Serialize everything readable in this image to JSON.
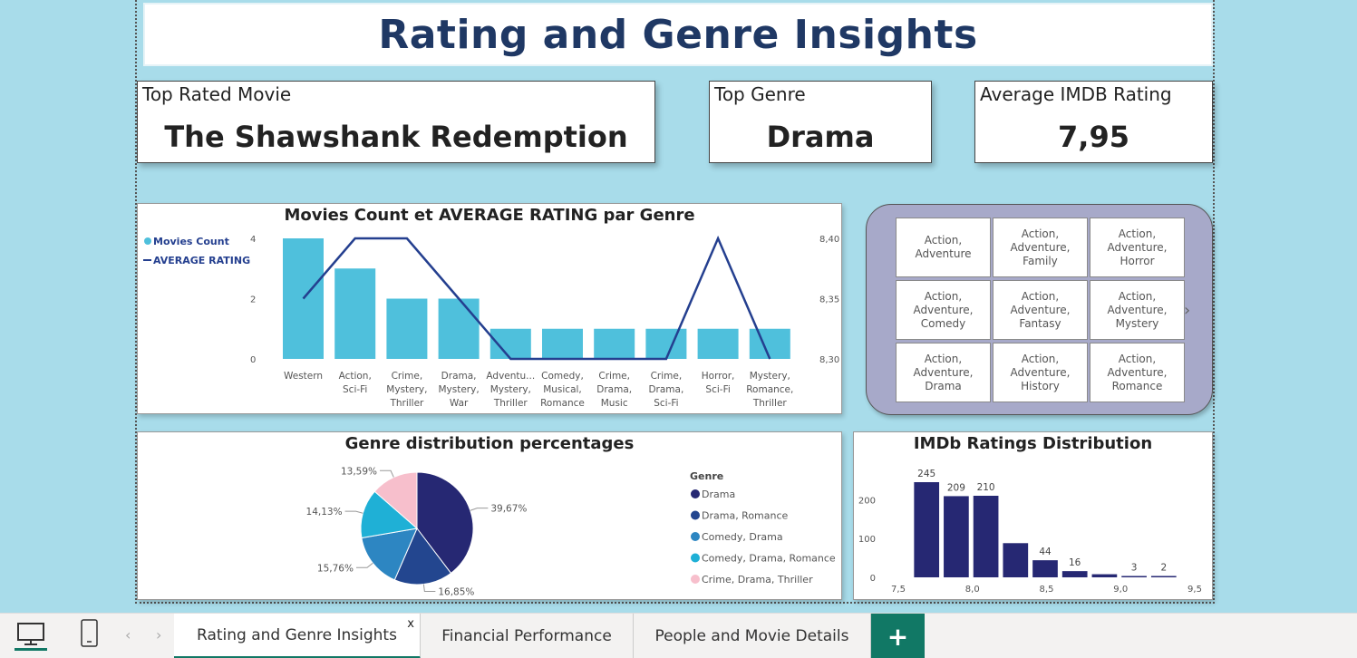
{
  "title": "Rating and Genre Insights",
  "kpis": {
    "top_movie": {
      "label": "Top Rated Movie",
      "value": "The Shawshank Redemption"
    },
    "top_genre": {
      "label": "Top Genre",
      "value": "Drama"
    },
    "avg_rating": {
      "label": "Average IMDB Rating",
      "value": "7,95"
    }
  },
  "slicer": {
    "tiles": [
      [
        "Action,",
        "Adventure"
      ],
      [
        "Action,",
        "Adventure,",
        "Family"
      ],
      [
        "Action,",
        "Adventure,",
        "Horror"
      ],
      [
        "Action,",
        "Adventure,",
        "Comedy"
      ],
      [
        "Action,",
        "Adventure,",
        "Fantasy"
      ],
      [
        "Action,",
        "Adventure,",
        "Mystery"
      ],
      [
        "Action,",
        "Adventure,",
        "Drama"
      ],
      [
        "Action,",
        "Adventure,",
        "History"
      ],
      [
        "Action,",
        "Adventure,",
        "Romance"
      ]
    ],
    "next_icon": "chevron-right-icon"
  },
  "chart_data": [
    {
      "type": "bar",
      "title": "Movies Count et AVERAGE RATING par Genre",
      "categories": [
        [
          "Western"
        ],
        [
          "Action,",
          "Sci-Fi"
        ],
        [
          "Crime,",
          "Mystery,",
          "Thriller"
        ],
        [
          "Drama,",
          "Mystery,",
          "War"
        ],
        [
          "Adventu...",
          "Mystery,",
          "Thriller"
        ],
        [
          "Comedy,",
          "Musical,",
          "Romance"
        ],
        [
          "Crime,",
          "Drama,",
          "Music"
        ],
        [
          "Crime,",
          "Drama,",
          "Sci-Fi"
        ],
        [
          "Horror,",
          "Sci-Fi"
        ],
        [
          "Mystery,",
          "Romance,",
          "Thriller"
        ]
      ],
      "series": [
        {
          "name": "Movies Count",
          "kind": "bar",
          "color": "#4fc0dc",
          "values": [
            4,
            3,
            2,
            2,
            1,
            1,
            1,
            1,
            1,
            1
          ]
        },
        {
          "name": "AVERAGE RATING",
          "kind": "line",
          "color": "#243f8f",
          "values": [
            8.35,
            8.4,
            8.4,
            8.35,
            8.3,
            8.3,
            8.3,
            8.3,
            8.4,
            8.3
          ]
        }
      ],
      "y_left_ticks": [
        "0",
        "2",
        "4"
      ],
      "y_left_range": [
        0,
        4
      ],
      "y_right_ticks": [
        "8,30",
        "8,35",
        "8,40"
      ],
      "y_right_range": [
        8.3,
        8.4
      ],
      "legend": "top-left"
    },
    {
      "type": "pie",
      "title": "Genre distribution percentages",
      "legend_title": "Genre",
      "slices": [
        {
          "name": "Drama",
          "value": 39.67,
          "label": "39,67%",
          "color": "#262873"
        },
        {
          "name": "Drama, Romance",
          "value": 16.85,
          "label": "16,85%",
          "color": "#23468f"
        },
        {
          "name": "Comedy, Drama",
          "value": 15.76,
          "label": "15,76%",
          "color": "#2d86c2"
        },
        {
          "name": "Comedy, Drama, Romance",
          "value": 14.13,
          "label": "14,13%",
          "color": "#1fb0d6"
        },
        {
          "name": "Crime, Drama, Thriller",
          "value": 13.59,
          "label": "13,59%",
          "color": "#f7bfcc"
        }
      ],
      "legend": "right"
    },
    {
      "type": "bar",
      "title": "IMDb Ratings Distribution",
      "bins_start": [
        7.6,
        7.8,
        8.0,
        8.2,
        8.4,
        8.6,
        8.8,
        9.0,
        9.2
      ],
      "bin_width": 0.2,
      "values": [
        245,
        209,
        210,
        88,
        44,
        16,
        8,
        3,
        2
      ],
      "value_labels": [
        "245",
        "209",
        "210",
        "",
        "44",
        "16",
        "",
        "3",
        "2"
      ],
      "color": "#262873",
      "x_ticks": [
        "7,5",
        "8,0",
        "8,5",
        "9,0",
        "9,5"
      ],
      "x_range": [
        7.5,
        9.5
      ],
      "y_ticks": [
        "0",
        "100",
        "200"
      ],
      "y_range": [
        0,
        280
      ]
    }
  ],
  "bottombar": {
    "desktop_icon": "desktop-icon",
    "mobile_icon": "mobile-icon",
    "tabs": [
      "Rating and Genre Insights",
      "Financial Performance",
      "People and Movie Details"
    ],
    "close_glyph": "x",
    "add_glyph": "+"
  }
}
